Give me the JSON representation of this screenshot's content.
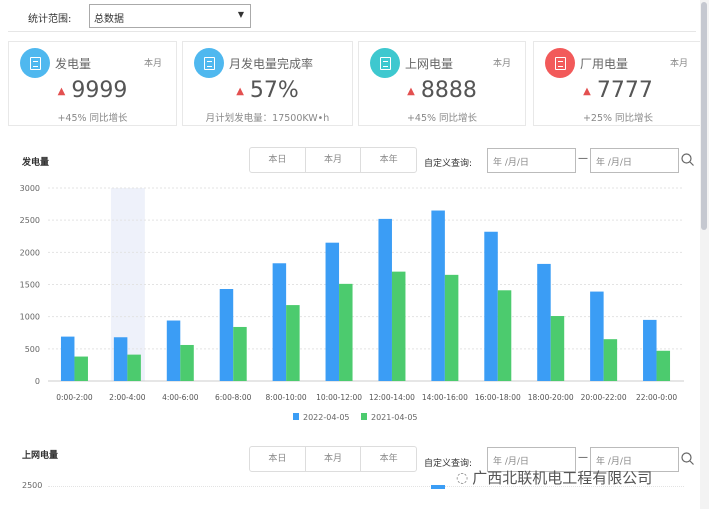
{
  "filter": {
    "label": "统计范围:",
    "selected": "总数据"
  },
  "cards": [
    {
      "title": "发电量",
      "period": "本月",
      "value": "9999",
      "sub": "+45% 同比增长",
      "color": "#4fb8ef"
    },
    {
      "title": "月发电量完成率",
      "period": "",
      "value": "57%",
      "sub": "月计划发电量：17500KW•h",
      "color": "#4fb8ef"
    },
    {
      "title": "上网电量",
      "period": "本月",
      "value": "8888",
      "sub": "+45% 同比增长",
      "color": "#3ec8cf"
    },
    {
      "title": "厂用电量",
      "period": "本月",
      "value": "7777",
      "sub": "+25% 同比增长",
      "color": "#f25a5a"
    }
  ],
  "sections": [
    {
      "title": "发电量",
      "tabs": [
        "本日",
        "本月",
        "本年"
      ],
      "custom_label": "自定义查询:",
      "date_from": "年 /月/日",
      "date_to": "年 /月/日"
    },
    {
      "title": "上网电量",
      "tabs": [
        "本日",
        "本月",
        "本年"
      ],
      "custom_label": "自定义查询:",
      "date_from": "年 /月/日",
      "date_to": "年 /月/日"
    }
  ],
  "chart_data": {
    "type": "bar",
    "title": "发电量",
    "categories": [
      "0:00-2:00",
      "2:00-4:00",
      "4:00-6:00",
      "6:00-8:00",
      "8:00-10:00",
      "10:00-12:00",
      "12:00-14:00",
      "14:00-16:00",
      "16:00-18:00",
      "18:00-20:00",
      "20:00-22:00",
      "22:00-0:00"
    ],
    "series": [
      {
        "name": "2022-04-05",
        "color": "#3b9df5",
        "values": [
          690,
          680,
          940,
          1430,
          1830,
          2150,
          2520,
          2650,
          2320,
          1820,
          1390,
          950
        ]
      },
      {
        "name": "2021-04-05",
        "color": "#4ccb6e",
        "values": [
          380,
          410,
          560,
          840,
          1180,
          1510,
          1700,
          1650,
          1410,
          1010,
          650,
          470
        ]
      }
    ],
    "yticks": [
      0,
      500,
      1000,
      1500,
      2000,
      2500,
      3000
    ],
    "ylim": [
      0,
      3000
    ],
    "grid": true,
    "legend": "bottom",
    "highlighted_category": "2:00-4:00"
  },
  "chart2": {
    "ytick_top": "2500"
  },
  "watermark": "广西北联机电工程有限公司"
}
